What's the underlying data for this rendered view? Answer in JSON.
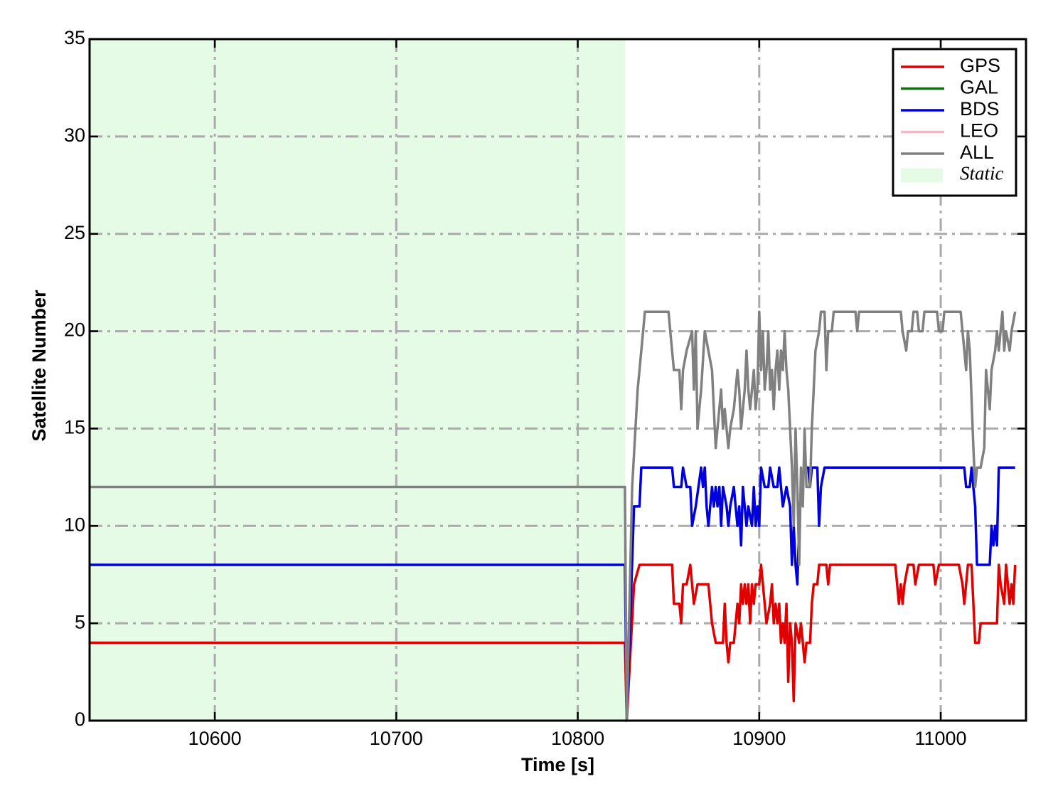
{
  "chart_data": {
    "type": "line",
    "xlabel": "Time [s]",
    "ylabel": "Satellite Number",
    "xlim": [
      10531,
      11047
    ],
    "ylim": [
      0,
      35
    ],
    "xticks": [
      10600,
      10700,
      10800,
      10900,
      11000
    ],
    "yticks": [
      0,
      5,
      10,
      15,
      20,
      25,
      30,
      35
    ],
    "grid": true,
    "grid_style": "dash-dot",
    "legend_position": "top-right",
    "static_region": {
      "name": "Static",
      "x": [
        10531,
        10826
      ],
      "color": "#e6fbe6"
    },
    "series": [
      {
        "name": "GPS",
        "color": "#e00000",
        "points": [
          [
            10531,
            4
          ],
          [
            10826,
            4
          ],
          [
            10827,
            0
          ],
          [
            10831,
            7
          ],
          [
            10834,
            8
          ],
          [
            10852,
            8
          ],
          [
            10853,
            6
          ],
          [
            10856,
            6
          ],
          [
            10857,
            5
          ],
          [
            10858,
            7
          ],
          [
            10860,
            7
          ],
          [
            10862,
            8
          ],
          [
            10864,
            6
          ],
          [
            10866,
            7
          ],
          [
            10872,
            7
          ],
          [
            10874,
            5
          ],
          [
            10876,
            4
          ],
          [
            10880,
            4
          ],
          [
            10881,
            6
          ],
          [
            10882,
            4
          ],
          [
            10883,
            3
          ],
          [
            10884,
            4
          ],
          [
            10886,
            4
          ],
          [
            10888,
            6
          ],
          [
            10889,
            5
          ],
          [
            10890,
            7
          ],
          [
            10891,
            6
          ],
          [
            10892,
            7
          ],
          [
            10893,
            6
          ],
          [
            10894,
            7
          ],
          [
            10895,
            5
          ],
          [
            10896,
            7
          ],
          [
            10897,
            6
          ],
          [
            10898,
            7
          ],
          [
            10900,
            7
          ],
          [
            10901,
            8
          ],
          [
            10903,
            6
          ],
          [
            10904,
            5
          ],
          [
            10906,
            6
          ],
          [
            10907,
            7
          ],
          [
            10908,
            5
          ],
          [
            10909,
            6
          ],
          [
            10910,
            5
          ],
          [
            10911,
            6
          ],
          [
            10912,
            4
          ],
          [
            10913,
            5
          ],
          [
            10914,
            4
          ],
          [
            10915,
            6
          ],
          [
            10916,
            2
          ],
          [
            10917,
            5
          ],
          [
            10918,
            4
          ],
          [
            10919,
            1
          ],
          [
            10920,
            5
          ],
          [
            10922,
            4
          ],
          [
            10923,
            5
          ],
          [
            10924,
            4
          ],
          [
            10925,
            3
          ],
          [
            10926,
            4
          ],
          [
            10928,
            4
          ],
          [
            10929,
            6
          ],
          [
            10930,
            7
          ],
          [
            10932,
            7
          ],
          [
            10933,
            8
          ],
          [
            10937,
            8
          ],
          [
            10938,
            7
          ],
          [
            10939,
            8
          ],
          [
            10975,
            8
          ],
          [
            10977,
            6
          ],
          [
            10978,
            7
          ],
          [
            10979,
            6
          ],
          [
            10980,
            7
          ],
          [
            10982,
            8
          ],
          [
            10985,
            8
          ],
          [
            10986,
            7
          ],
          [
            10988,
            8
          ],
          [
            10996,
            8
          ],
          [
            10997,
            7
          ],
          [
            10999,
            8
          ],
          [
            11010,
            8
          ],
          [
            11012,
            7
          ],
          [
            11013,
            6
          ],
          [
            11015,
            8
          ],
          [
            11017,
            8
          ],
          [
            11018,
            6
          ],
          [
            11019,
            4
          ],
          [
            11021,
            4
          ],
          [
            11022,
            5
          ],
          [
            11031,
            5
          ],
          [
            11032,
            8
          ],
          [
            11033,
            7
          ],
          [
            11035,
            6
          ],
          [
            11036,
            8
          ],
          [
            11037,
            7
          ],
          [
            11038,
            6
          ],
          [
            11039,
            7
          ],
          [
            11040,
            6
          ],
          [
            11041,
            8
          ]
        ]
      },
      {
        "name": "GAL",
        "color": "#007a00",
        "points": []
      },
      {
        "name": "BDS",
        "color": "#0000dd",
        "points": [
          [
            10531,
            8
          ],
          [
            10826,
            8
          ],
          [
            10827,
            0
          ],
          [
            10831,
            11
          ],
          [
            10834,
            11
          ],
          [
            10835,
            13
          ],
          [
            10852,
            13
          ],
          [
            10853,
            12
          ],
          [
            10857,
            12
          ],
          [
            10858,
            13
          ],
          [
            10860,
            12
          ],
          [
            10862,
            12
          ],
          [
            10863,
            10
          ],
          [
            10865,
            11
          ],
          [
            10868,
            13
          ],
          [
            10869,
            12
          ],
          [
            10870,
            13
          ],
          [
            10871,
            11
          ],
          [
            10872,
            10
          ],
          [
            10874,
            12
          ],
          [
            10875,
            11
          ],
          [
            10876,
            12
          ],
          [
            10877,
            11
          ],
          [
            10878,
            12
          ],
          [
            10879,
            10
          ],
          [
            10880,
            12
          ],
          [
            10882,
            11
          ],
          [
            10883,
            10
          ],
          [
            10884,
            11
          ],
          [
            10886,
            12
          ],
          [
            10887,
            11
          ],
          [
            10888,
            10
          ],
          [
            10889,
            11
          ],
          [
            10890,
            9
          ],
          [
            10891,
            12
          ],
          [
            10893,
            10
          ],
          [
            10894,
            11
          ],
          [
            10896,
            10
          ],
          [
            10897,
            12
          ],
          [
            10898,
            10
          ],
          [
            10899,
            11
          ],
          [
            10900,
            10
          ],
          [
            10901,
            13
          ],
          [
            10903,
            12
          ],
          [
            10905,
            12
          ],
          [
            10906,
            13
          ],
          [
            10908,
            12
          ],
          [
            10910,
            12
          ],
          [
            10911,
            13
          ],
          [
            10913,
            11
          ],
          [
            10915,
            12
          ],
          [
            10917,
            11
          ],
          [
            10918,
            8
          ],
          [
            10919,
            10
          ],
          [
            10920,
            8
          ],
          [
            10921,
            7
          ],
          [
            10922,
            10
          ],
          [
            10923,
            12
          ],
          [
            10925,
            13
          ],
          [
            10927,
            13
          ],
          [
            10928,
            12
          ],
          [
            10929,
            13
          ],
          [
            10932,
            13
          ],
          [
            10933,
            10
          ],
          [
            10934,
            12
          ],
          [
            10936,
            13
          ],
          [
            11013,
            13
          ],
          [
            11014,
            12
          ],
          [
            11016,
            12
          ],
          [
            11017,
            13
          ],
          [
            11019,
            11
          ],
          [
            11020,
            8
          ],
          [
            11022,
            8
          ],
          [
            11027,
            8
          ],
          [
            11028,
            10
          ],
          [
            11029,
            9
          ],
          [
            11030,
            10
          ],
          [
            11031,
            9
          ],
          [
            11032,
            13
          ],
          [
            11041,
            13
          ]
        ]
      },
      {
        "name": "LEO",
        "color": "#f5b8c8",
        "points": []
      },
      {
        "name": "ALL",
        "color": "#808080",
        "points": [
          [
            10531,
            12
          ],
          [
            10826,
            12
          ],
          [
            10827,
            0
          ],
          [
            10830,
            12
          ],
          [
            10833,
            17
          ],
          [
            10834,
            18
          ],
          [
            10836,
            20
          ],
          [
            10837,
            21
          ],
          [
            10850,
            21
          ],
          [
            10851,
            20
          ],
          [
            10853,
            18
          ],
          [
            10856,
            18
          ],
          [
            10857,
            16
          ],
          [
            10858,
            18
          ],
          [
            10860,
            19
          ],
          [
            10863,
            20
          ],
          [
            10864,
            17
          ],
          [
            10865,
            20
          ],
          [
            10866,
            15
          ],
          [
            10868,
            17
          ],
          [
            10870,
            20
          ],
          [
            10872,
            19
          ],
          [
            10874,
            18
          ],
          [
            10876,
            14
          ],
          [
            10877,
            15
          ],
          [
            10879,
            17
          ],
          [
            10880,
            15
          ],
          [
            10881,
            16
          ],
          [
            10883,
            14
          ],
          [
            10884,
            15
          ],
          [
            10886,
            16
          ],
          [
            10888,
            18
          ],
          [
            10889,
            17
          ],
          [
            10890,
            15
          ],
          [
            10892,
            17
          ],
          [
            10893,
            19
          ],
          [
            10894,
            17
          ],
          [
            10895,
            16
          ],
          [
            10896,
            17
          ],
          [
            10897,
            18
          ],
          [
            10898,
            16
          ],
          [
            10899,
            17
          ],
          [
            10900,
            21
          ],
          [
            10901,
            18
          ],
          [
            10902,
            20
          ],
          [
            10903,
            17
          ],
          [
            10904,
            18
          ],
          [
            10905,
            20
          ],
          [
            10906,
            17
          ],
          [
            10907,
            18
          ],
          [
            10908,
            16
          ],
          [
            10909,
            18
          ],
          [
            10910,
            19
          ],
          [
            10911,
            17
          ],
          [
            10912,
            19
          ],
          [
            10913,
            18
          ],
          [
            10914,
            20
          ],
          [
            10915,
            18
          ],
          [
            10916,
            17
          ],
          [
            10917,
            15
          ],
          [
            10918,
            13
          ],
          [
            10919,
            10
          ],
          [
            10920,
            15
          ],
          [
            10921,
            12
          ],
          [
            10922,
            8
          ],
          [
            10923,
            13
          ],
          [
            10924,
            11
          ],
          [
            10925,
            15
          ],
          [
            10926,
            12
          ],
          [
            10928,
            12
          ],
          [
            10929,
            15
          ],
          [
            10930,
            17
          ],
          [
            10931,
            19
          ],
          [
            10933,
            20
          ],
          [
            10934,
            21
          ],
          [
            10936,
            21
          ],
          [
            10937,
            18
          ],
          [
            10938,
            20
          ],
          [
            10940,
            20
          ],
          [
            10941,
            21
          ],
          [
            10953,
            21
          ],
          [
            10954,
            20
          ],
          [
            10955,
            21
          ],
          [
            10978,
            21
          ],
          [
            10979,
            20
          ],
          [
            10981,
            19
          ],
          [
            10982,
            20
          ],
          [
            10984,
            20
          ],
          [
            10985,
            21
          ],
          [
            10987,
            21
          ],
          [
            10988,
            20
          ],
          [
            10990,
            20
          ],
          [
            10991,
            21
          ],
          [
            10998,
            21
          ],
          [
            10999,
            20
          ],
          [
            11001,
            20
          ],
          [
            11002,
            21
          ],
          [
            11011,
            21
          ],
          [
            11012,
            20
          ],
          [
            11014,
            18
          ],
          [
            11015,
            20
          ],
          [
            11016,
            19
          ],
          [
            11018,
            14
          ],
          [
            11019,
            12
          ],
          [
            11020,
            13
          ],
          [
            11022,
            13
          ],
          [
            11024,
            14
          ],
          [
            11025,
            18
          ],
          [
            11026,
            17
          ],
          [
            11027,
            16
          ],
          [
            11028,
            18
          ],
          [
            11030,
            19
          ],
          [
            11031,
            20
          ],
          [
            11032,
            19
          ],
          [
            11034,
            21
          ],
          [
            11035,
            19
          ],
          [
            11036,
            20
          ],
          [
            11038,
            19
          ],
          [
            11039,
            20
          ],
          [
            11041,
            21
          ]
        ]
      }
    ]
  }
}
